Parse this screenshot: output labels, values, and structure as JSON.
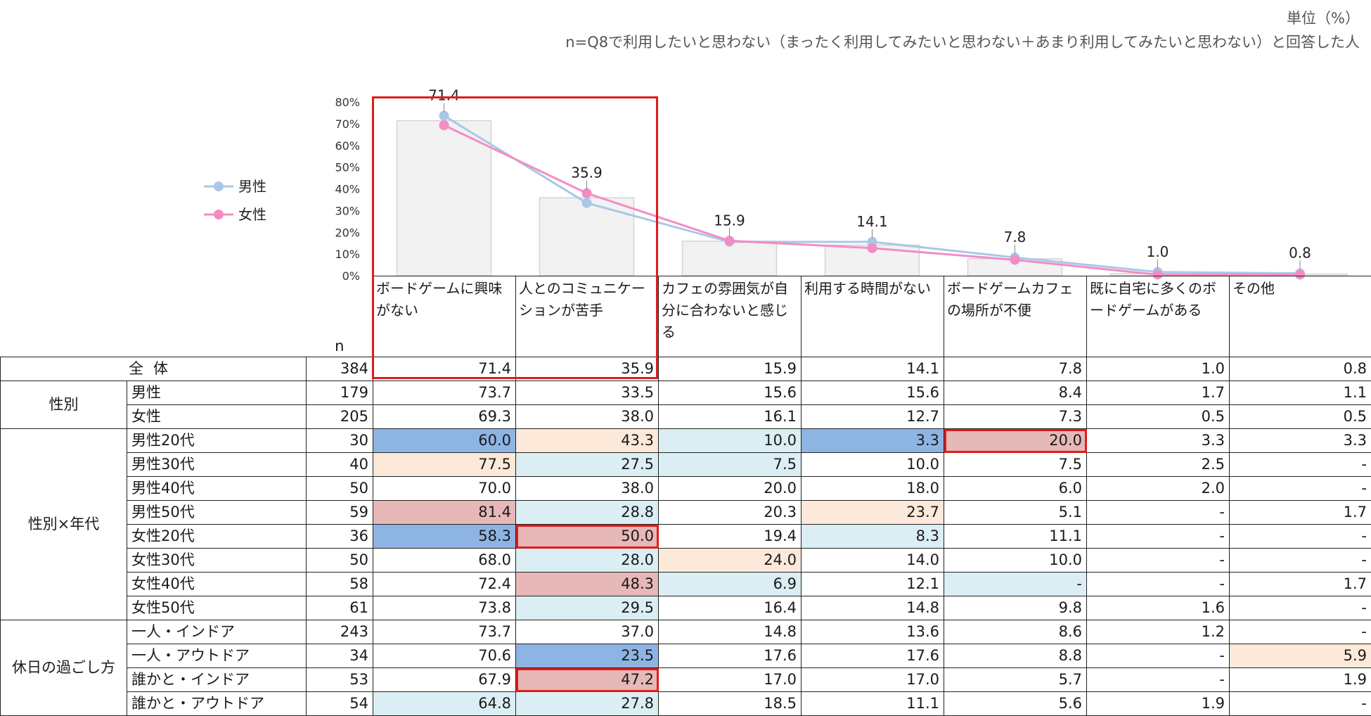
{
  "header": {
    "unit": "単位（%）",
    "note": "n=Q8で利用したいと思わない（まったく利用してみたいと思わない＋あまり利用してみたいと思わない）と回答した人"
  },
  "chart_data": {
    "type": "bar",
    "categories": [
      "ボードゲームに興味がない",
      "人とのコミュニケーションが苦手",
      "カフェの雰囲気が自分に合わないと感じる",
      "利用する時間がない",
      "ボードゲームカフェの場所が不便",
      "既に自宅に多くのボードゲームがある",
      "その他"
    ],
    "bar_values": [
      71.4,
      35.9,
      15.9,
      14.1,
      7.8,
      1.0,
      0.8
    ],
    "bar_labels": [
      "71.4",
      "35.9",
      "15.9",
      "14.1",
      "7.8",
      "1.0",
      "0.8"
    ],
    "series": [
      {
        "name": "男性",
        "type": "line",
        "color": "#a9c8e8",
        "values": [
          73.7,
          33.5,
          15.6,
          15.6,
          8.4,
          1.7,
          1.1
        ]
      },
      {
        "name": "女性",
        "type": "line",
        "color": "#f48cc4",
        "values": [
          69.3,
          38.0,
          16.1,
          12.7,
          7.3,
          0.5,
          0.5
        ]
      }
    ],
    "y_ticks": [
      "0%",
      "10%",
      "20%",
      "30%",
      "40%",
      "50%",
      "60%",
      "70%",
      "80%"
    ],
    "ylim": [
      0,
      80
    ],
    "legend_position": "left"
  },
  "table": {
    "n_label": "n",
    "columns": [
      "ボードゲームに興味がない",
      "人とのコミュニケーションが苦手",
      "カフェの雰囲気が自分に合わないと感じる",
      "利用する時間がない",
      "ボードゲームカフェの場所が不便",
      "既に自宅に多くのボードゲームがある",
      "その他"
    ],
    "colors": {
      "dark_blue": "#8eb4e3",
      "light_blue": "#daeef3",
      "peach": "#fde9d9",
      "red": "#e6b8b7",
      "highlight_border": "#e01b1b"
    },
    "total": {
      "label": "全体",
      "n": "384",
      "values": [
        "71.4",
        "35.9",
        "15.9",
        "14.1",
        "7.8",
        "1.0",
        "0.8"
      ]
    },
    "groups": [
      {
        "label": "性別",
        "rows": [
          {
            "label": "男性",
            "n": "179",
            "values": [
              "73.7",
              "33.5",
              "15.6",
              "15.6",
              "8.4",
              "1.7",
              "1.1"
            ],
            "shade": [
              "",
              "",
              "",
              "",
              "",
              "",
              ""
            ]
          },
          {
            "label": "女性",
            "n": "205",
            "values": [
              "69.3",
              "38.0",
              "16.1",
              "12.7",
              "7.3",
              "0.5",
              "0.5"
            ],
            "shade": [
              "",
              "",
              "",
              "",
              "",
              "",
              ""
            ]
          }
        ]
      },
      {
        "label": "性別×年代",
        "rows": [
          {
            "label": "男性20代",
            "n": "30",
            "values": [
              "60.0",
              "43.3",
              "10.0",
              "3.3",
              "20.0",
              "3.3",
              "3.3"
            ],
            "shade": [
              "dark_blue",
              "peach",
              "light_blue",
              "dark_blue",
              "red",
              "",
              ""
            ],
            "boxed": [
              4
            ]
          },
          {
            "label": "男性30代",
            "n": "40",
            "values": [
              "77.5",
              "27.5",
              "7.5",
              "10.0",
              "7.5",
              "2.5",
              "-"
            ],
            "shade": [
              "peach",
              "light_blue",
              "light_blue",
              "",
              "",
              "",
              ""
            ]
          },
          {
            "label": "男性40代",
            "n": "50",
            "values": [
              "70.0",
              "38.0",
              "20.0",
              "18.0",
              "6.0",
              "2.0",
              "-"
            ],
            "shade": [
              "",
              "",
              "",
              "",
              "",
              "",
              ""
            ]
          },
          {
            "label": "男性50代",
            "n": "59",
            "values": [
              "81.4",
              "28.8",
              "20.3",
              "23.7",
              "5.1",
              "-",
              "1.7"
            ],
            "shade": [
              "red",
              "light_blue",
              "",
              "peach",
              "",
              "",
              ""
            ]
          },
          {
            "label": "女性20代",
            "n": "36",
            "values": [
              "58.3",
              "50.0",
              "19.4",
              "8.3",
              "11.1",
              "-",
              "-"
            ],
            "shade": [
              "dark_blue",
              "red",
              "",
              "light_blue",
              "",
              "",
              ""
            ],
            "boxed": [
              1
            ]
          },
          {
            "label": "女性30代",
            "n": "50",
            "values": [
              "68.0",
              "28.0",
              "24.0",
              "14.0",
              "10.0",
              "-",
              "-"
            ],
            "shade": [
              "",
              "light_blue",
              "peach",
              "",
              "",
              "",
              ""
            ]
          },
          {
            "label": "女性40代",
            "n": "58",
            "values": [
              "72.4",
              "48.3",
              "6.9",
              "12.1",
              "-",
              "-",
              "1.7"
            ],
            "shade": [
              "",
              "red",
              "light_blue",
              "",
              "light_blue",
              "",
              ""
            ]
          },
          {
            "label": "女性50代",
            "n": "61",
            "values": [
              "73.8",
              "29.5",
              "16.4",
              "14.8",
              "9.8",
              "1.6",
              "-"
            ],
            "shade": [
              "",
              "light_blue",
              "",
              "",
              "",
              "",
              ""
            ]
          }
        ]
      },
      {
        "label": "休日の過ごし方",
        "rows": [
          {
            "label": "一人・インドア",
            "n": "243",
            "values": [
              "73.7",
              "37.0",
              "14.8",
              "13.6",
              "8.6",
              "1.2",
              "-"
            ],
            "shade": [
              "",
              "",
              "",
              "",
              "",
              "",
              ""
            ]
          },
          {
            "label": "一人・アウトドア",
            "n": "34",
            "values": [
              "70.6",
              "23.5",
              "17.6",
              "17.6",
              "8.8",
              "-",
              "5.9"
            ],
            "shade": [
              "",
              "dark_blue",
              "",
              "",
              "",
              "",
              "peach"
            ]
          },
          {
            "label": "誰かと・インドア",
            "n": "53",
            "values": [
              "67.9",
              "47.2",
              "17.0",
              "17.0",
              "5.7",
              "-",
              "1.9"
            ],
            "shade": [
              "",
              "red",
              "",
              "",
              "",
              "",
              ""
            ],
            "boxed": [
              1
            ]
          },
          {
            "label": "誰かと・アウトドア",
            "n": "54",
            "values": [
              "64.8",
              "27.8",
              "18.5",
              "11.1",
              "5.6",
              "1.9",
              "-"
            ],
            "shade": [
              "light_blue",
              "light_blue",
              "",
              "",
              "",
              "",
              ""
            ]
          }
        ]
      }
    ]
  }
}
